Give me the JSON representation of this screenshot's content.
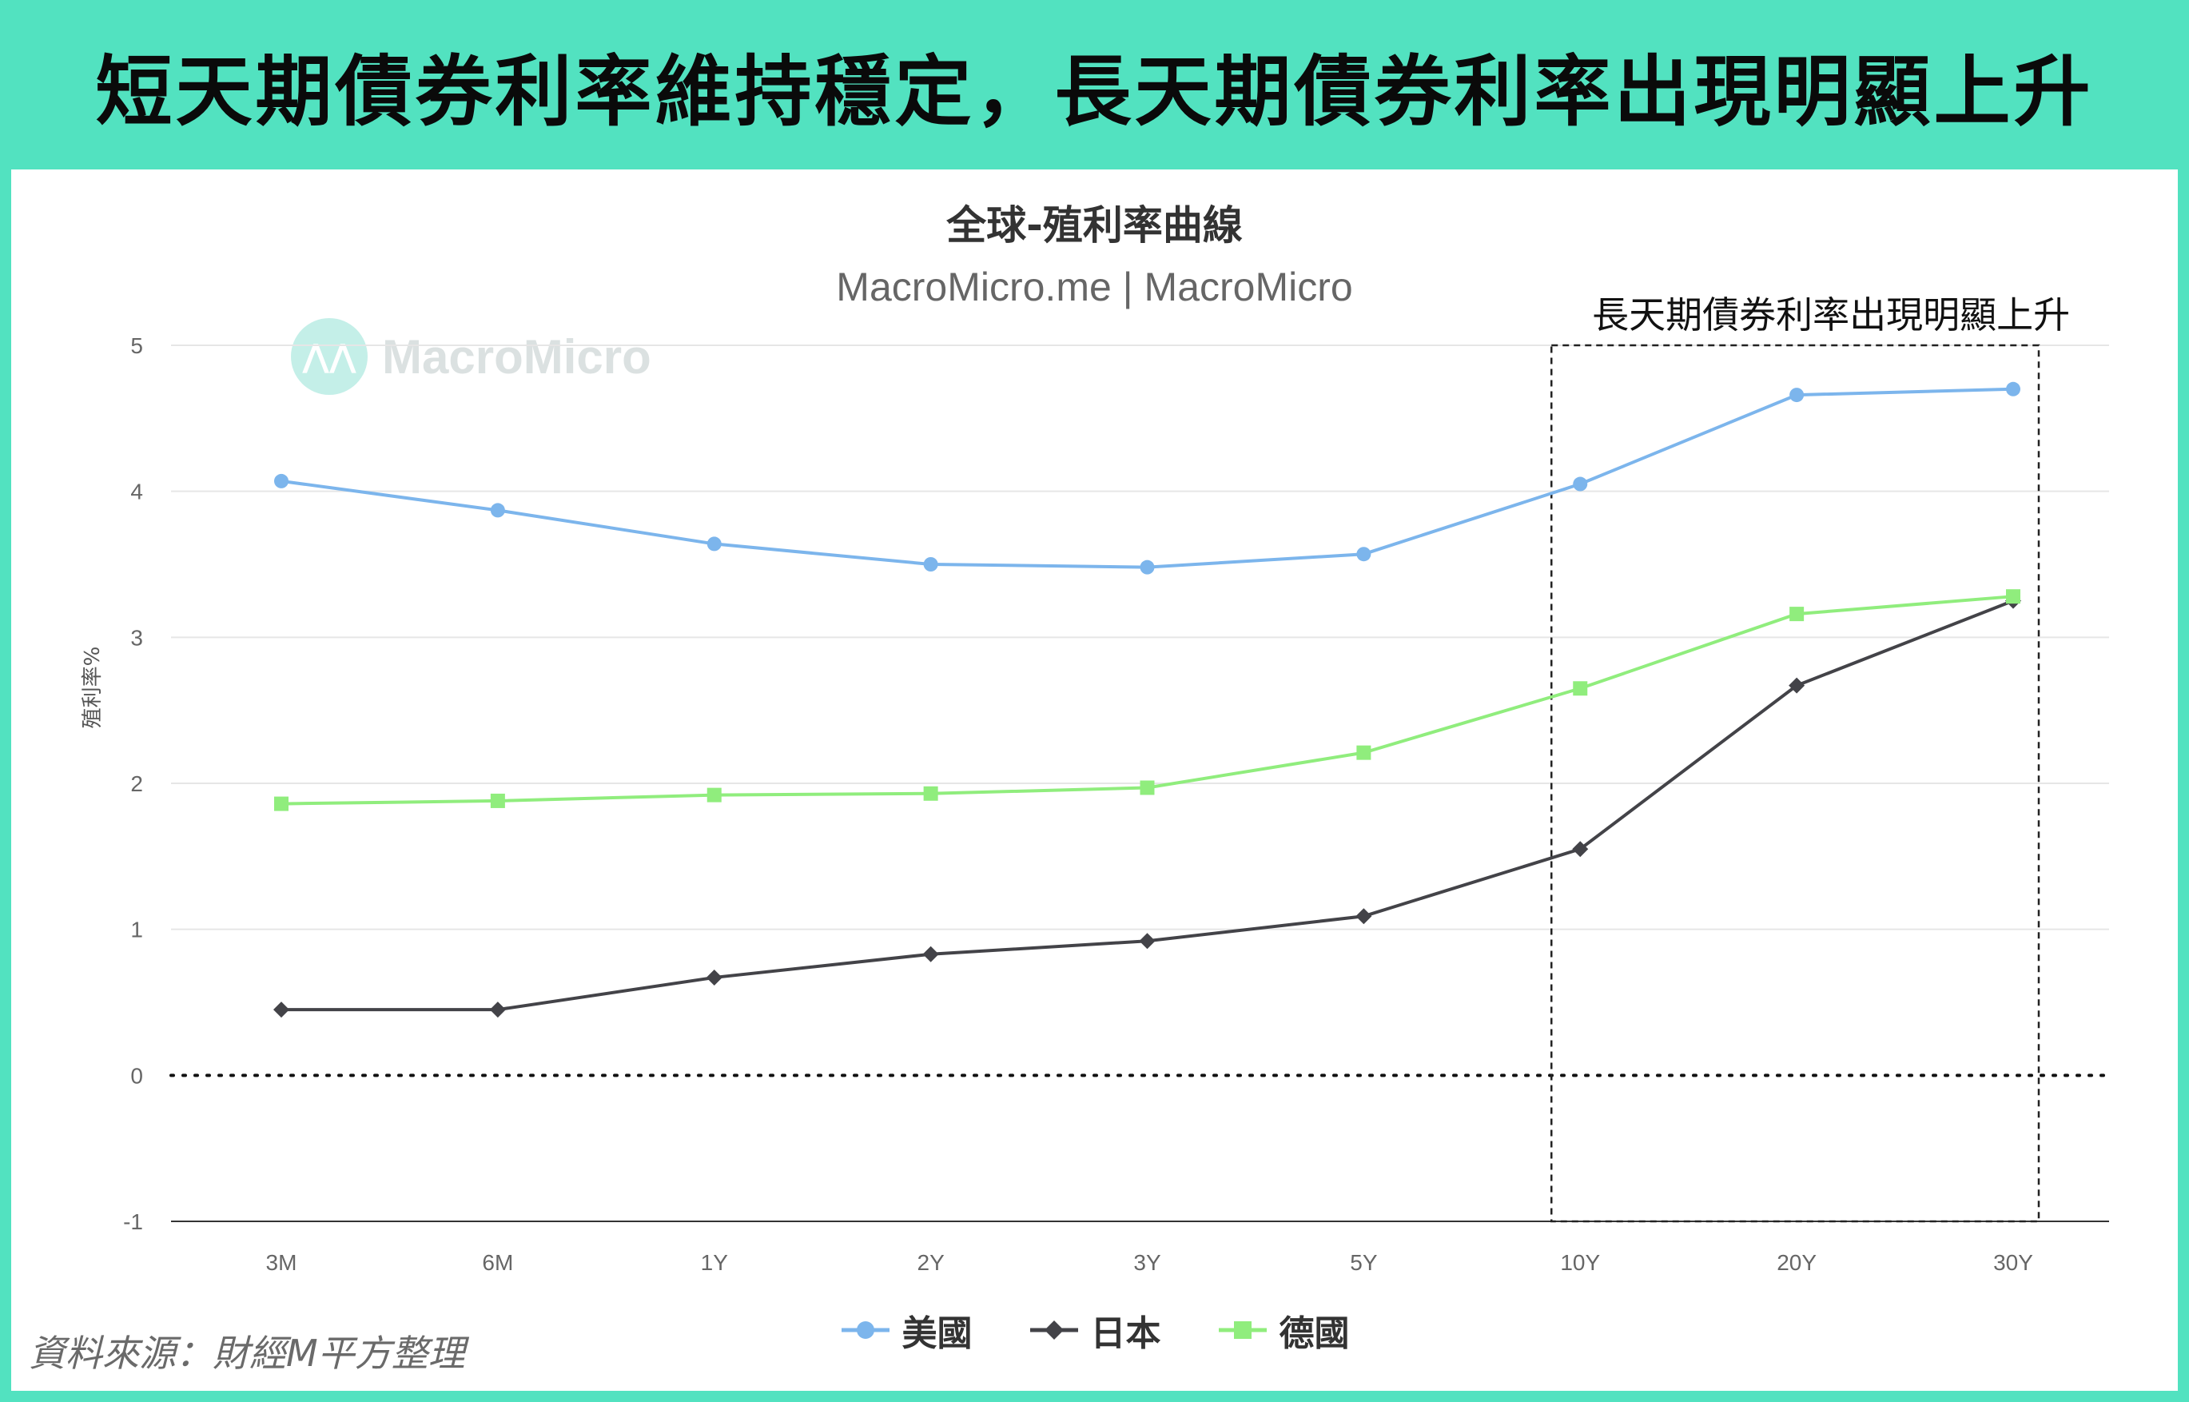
{
  "banner": {
    "title": "短天期債券利率維持穩定，長天期債券利率出現明顯上升"
  },
  "watermark": {
    "text": "MacroMicro"
  },
  "source": "資料來源：財經M平方整理",
  "chart_data": {
    "type": "line",
    "title": "全球-殖利率曲線",
    "subtitle": "MacroMicro.me | MacroMicro",
    "ylabel": "殖利率%",
    "xlabel": "",
    "ylim": [
      -1,
      5
    ],
    "yticks": [
      -1,
      0,
      1,
      2,
      3,
      4,
      5
    ],
    "categories": [
      "3M",
      "6M",
      "1Y",
      "2Y",
      "3Y",
      "5Y",
      "10Y",
      "20Y",
      "30Y"
    ],
    "grid": true,
    "legend_position": "bottom",
    "series": [
      {
        "name": "美國",
        "color": "#7cb5ec",
        "marker": "circle",
        "values": [
          4.07,
          3.87,
          3.64,
          3.5,
          3.48,
          3.57,
          4.05,
          4.66,
          4.7
        ]
      },
      {
        "name": "日本",
        "color": "#434348",
        "marker": "diamond",
        "values": [
          0.45,
          0.45,
          0.67,
          0.83,
          0.92,
          1.09,
          1.55,
          2.67,
          3.25
        ]
      },
      {
        "name": "德國",
        "color": "#90ed7d",
        "marker": "square",
        "values": [
          1.86,
          1.88,
          1.92,
          1.93,
          1.97,
          2.21,
          2.65,
          3.16,
          3.28
        ]
      }
    ],
    "zero_line": {
      "value": 0,
      "style": "dotted"
    },
    "annotation": {
      "text": "長天期債券利率出現明顯上升",
      "from_category": "10Y",
      "to_category": "30Y",
      "style": "dashed-box"
    }
  }
}
